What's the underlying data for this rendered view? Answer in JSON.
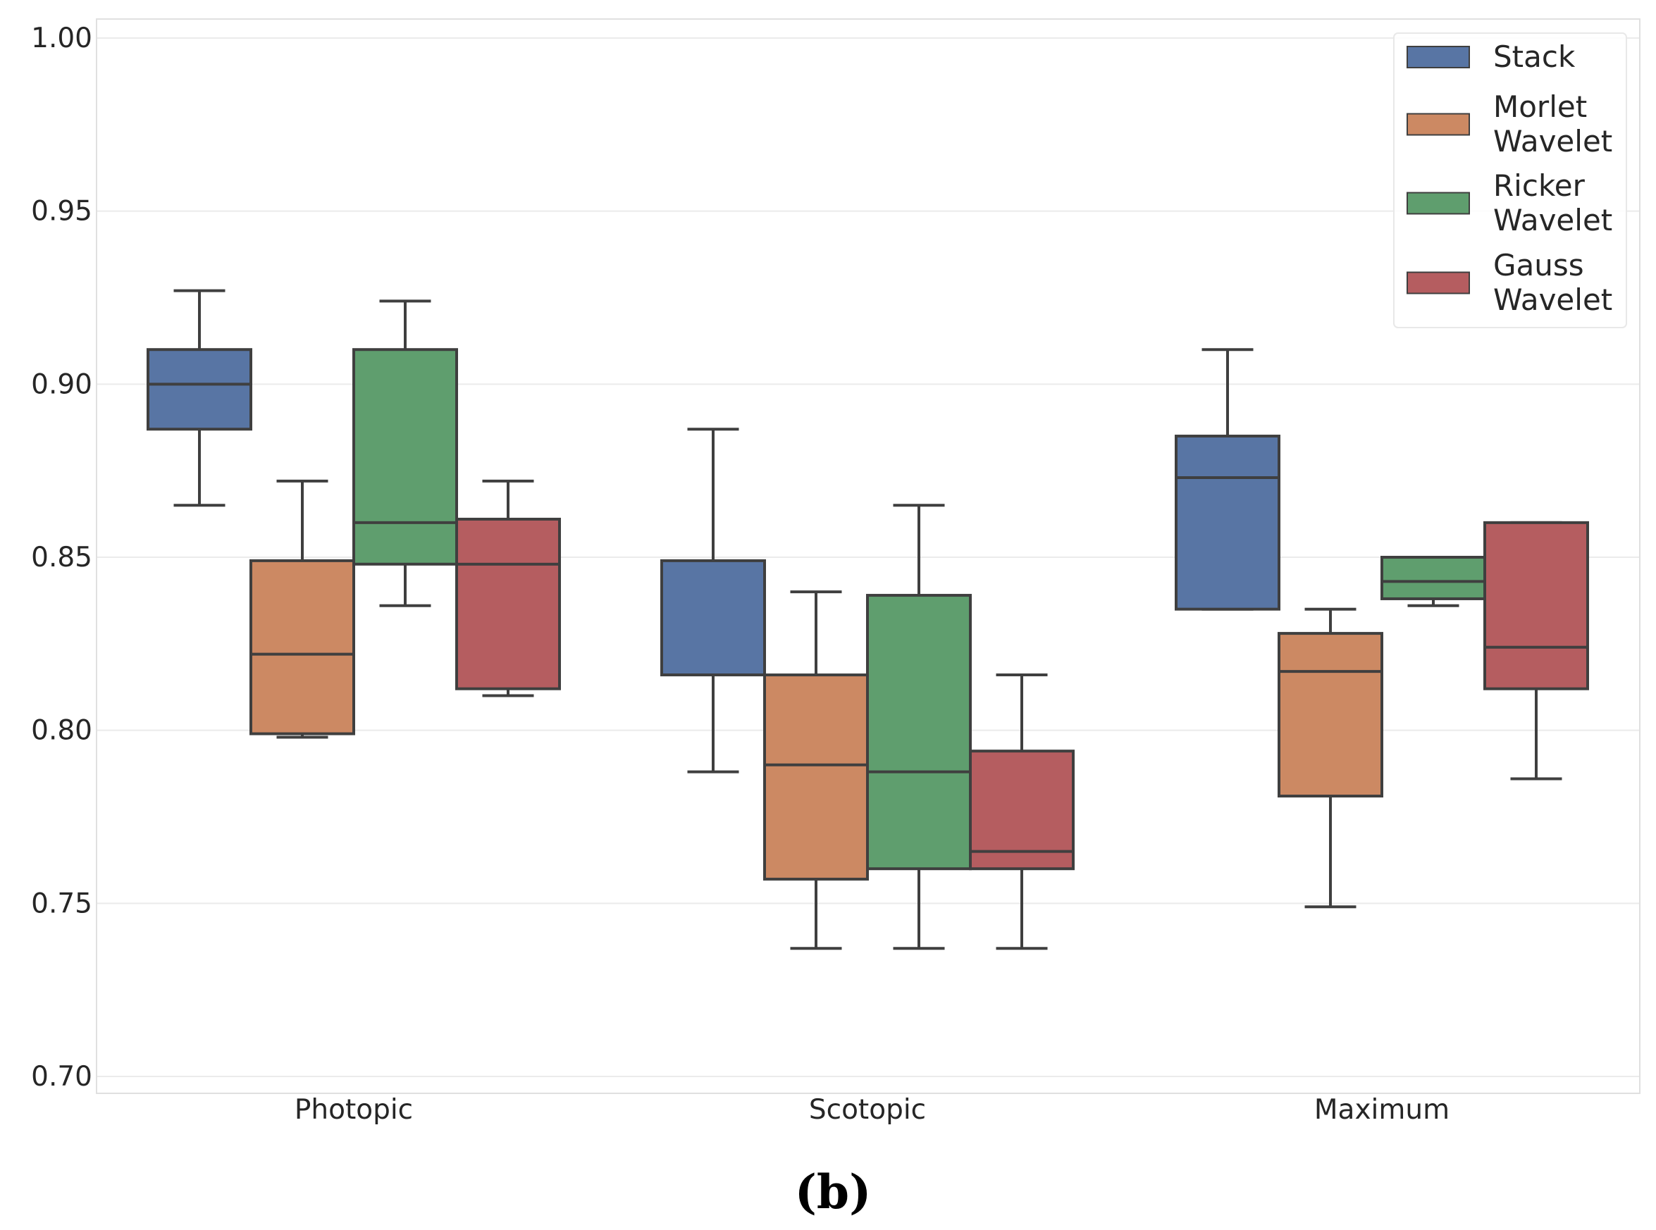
{
  "chart_data": {
    "type": "box",
    "title": "",
    "xlabel": "",
    "ylabel": "",
    "ylim": [
      0.695,
      1.005
    ],
    "yticks": [
      "0.70",
      "0.75",
      "0.80",
      "0.85",
      "0.90",
      "0.95",
      "1.00"
    ],
    "ytick_values": [
      0.7,
      0.75,
      0.8,
      0.85,
      0.9,
      0.95,
      1.0
    ],
    "categories": [
      "Photopic",
      "Scotopic",
      "Maximum"
    ],
    "legend_position": "top-right",
    "caption": "(b)",
    "series": [
      {
        "name": "Stack",
        "label_lines": [
          "Stack"
        ],
        "color": "#5875a4",
        "boxes": [
          {
            "whislo": 0.865,
            "q1": 0.887,
            "med": 0.9,
            "q3": 0.91,
            "whishi": 0.927
          },
          {
            "whislo": 0.788,
            "q1": 0.816,
            "med": 0.816,
            "q3": 0.849,
            "whishi": 0.887
          },
          {
            "whislo": 0.835,
            "q1": 0.835,
            "med": 0.873,
            "q3": 0.885,
            "whishi": 0.91
          }
        ]
      },
      {
        "name": "Morlet Wavelet",
        "label_lines": [
          "Morlet",
          "Wavelet"
        ],
        "color": "#cc8963",
        "boxes": [
          {
            "whislo": 0.798,
            "q1": 0.799,
            "med": 0.822,
            "q3": 0.849,
            "whishi": 0.872
          },
          {
            "whislo": 0.737,
            "q1": 0.757,
            "med": 0.79,
            "q3": 0.816,
            "whishi": 0.84
          },
          {
            "whislo": 0.749,
            "q1": 0.781,
            "med": 0.817,
            "q3": 0.828,
            "whishi": 0.835
          }
        ]
      },
      {
        "name": "Ricker Wavelet",
        "label_lines": [
          "Ricker",
          "Wavelet"
        ],
        "color": "#5f9e6e",
        "boxes": [
          {
            "whislo": 0.836,
            "q1": 0.848,
            "med": 0.86,
            "q3": 0.91,
            "whishi": 0.924
          },
          {
            "whislo": 0.737,
            "q1": 0.76,
            "med": 0.788,
            "q3": 0.839,
            "whishi": 0.865
          },
          {
            "whislo": 0.836,
            "q1": 0.838,
            "med": 0.843,
            "q3": 0.85,
            "whishi": 0.85
          }
        ]
      },
      {
        "name": "Gauss Wavelet",
        "label_lines": [
          "Gauss",
          "Wavelet"
        ],
        "color": "#b55d60",
        "boxes": [
          {
            "whislo": 0.81,
            "q1": 0.812,
            "med": 0.848,
            "q3": 0.861,
            "whishi": 0.872
          },
          {
            "whislo": 0.737,
            "q1": 0.76,
            "med": 0.765,
            "q3": 0.794,
            "whishi": 0.816
          },
          {
            "whislo": 0.786,
            "q1": 0.812,
            "med": 0.824,
            "q3": 0.86,
            "whishi": 0.86
          }
        ]
      }
    ]
  }
}
